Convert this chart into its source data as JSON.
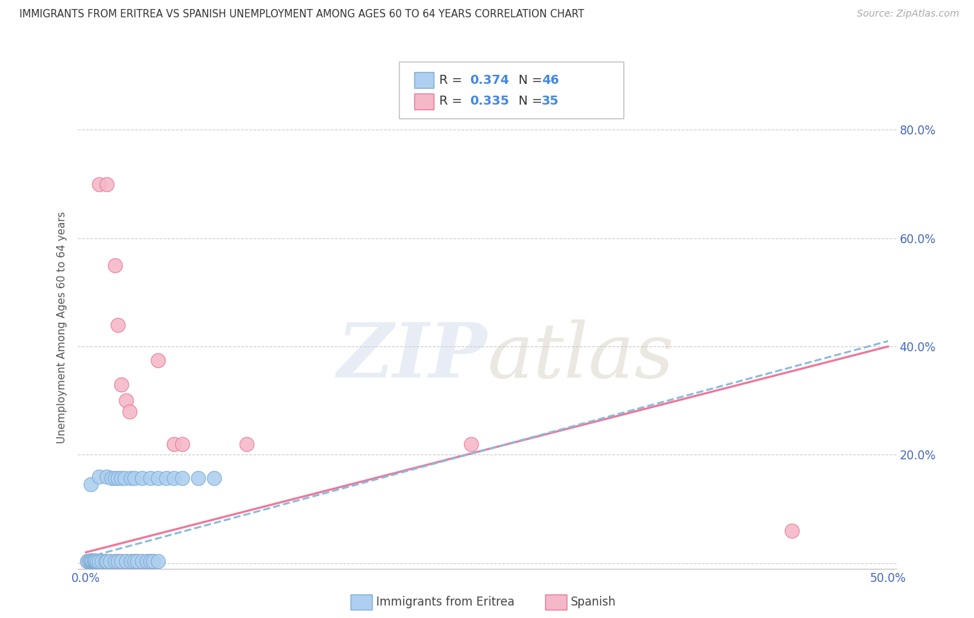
{
  "title": "IMMIGRANTS FROM ERITREA VS SPANISH UNEMPLOYMENT AMONG AGES 60 TO 64 YEARS CORRELATION CHART",
  "source": "Source: ZipAtlas.com",
  "ylabel": "Unemployment Among Ages 60 to 64 years",
  "xlim": [
    -0.005,
    0.505
  ],
  "ylim": [
    -0.01,
    0.88
  ],
  "xticks": [
    0.0,
    0.1,
    0.2,
    0.3,
    0.4,
    0.5
  ],
  "yticks": [
    0.0,
    0.2,
    0.4,
    0.6,
    0.8
  ],
  "ytick_labels_right": [
    "",
    "20.0%",
    "40.0%",
    "60.0%",
    "80.0%"
  ],
  "xtick_labels": [
    "0.0%",
    "",
    "",
    "",
    "",
    "50.0%"
  ],
  "legend_r1": "0.374",
  "legend_n1": "46",
  "legend_r2": "0.335",
  "legend_n2": "35",
  "blue_color": "#aecfef",
  "pink_color": "#f5b8c8",
  "blue_edge_color": "#7aadd4",
  "pink_edge_color": "#e87898",
  "blue_line_color": "#88bbdd",
  "pink_line_color": "#ee7799",
  "blue_scatter": [
    [
      0.001,
      0.003
    ],
    [
      0.002,
      0.003
    ],
    [
      0.003,
      0.003
    ],
    [
      0.003,
      0.005
    ],
    [
      0.004,
      0.003
    ],
    [
      0.004,
      0.005
    ],
    [
      0.005,
      0.003
    ],
    [
      0.005,
      0.005
    ],
    [
      0.006,
      0.003
    ],
    [
      0.006,
      0.005
    ],
    [
      0.007,
      0.003
    ],
    [
      0.008,
      0.003
    ],
    [
      0.01,
      0.003
    ],
    [
      0.012,
      0.003
    ],
    [
      0.013,
      0.003
    ],
    [
      0.015,
      0.003
    ],
    [
      0.018,
      0.003
    ],
    [
      0.02,
      0.003
    ],
    [
      0.022,
      0.003
    ],
    [
      0.025,
      0.003
    ],
    [
      0.028,
      0.003
    ],
    [
      0.03,
      0.003
    ],
    [
      0.032,
      0.003
    ],
    [
      0.035,
      0.003
    ],
    [
      0.038,
      0.003
    ],
    [
      0.04,
      0.003
    ],
    [
      0.042,
      0.003
    ],
    [
      0.045,
      0.003
    ],
    [
      0.003,
      0.145
    ],
    [
      0.008,
      0.16
    ],
    [
      0.013,
      0.16
    ],
    [
      0.016,
      0.157
    ],
    [
      0.018,
      0.157
    ],
    [
      0.02,
      0.157
    ],
    [
      0.022,
      0.157
    ],
    [
      0.024,
      0.157
    ],
    [
      0.028,
      0.157
    ],
    [
      0.03,
      0.157
    ],
    [
      0.035,
      0.157
    ],
    [
      0.04,
      0.157
    ],
    [
      0.045,
      0.157
    ],
    [
      0.05,
      0.157
    ],
    [
      0.055,
      0.157
    ],
    [
      0.06,
      0.157
    ],
    [
      0.07,
      0.157
    ],
    [
      0.08,
      0.157
    ]
  ],
  "pink_scatter": [
    [
      0.001,
      0.003
    ],
    [
      0.002,
      0.003
    ],
    [
      0.003,
      0.003
    ],
    [
      0.004,
      0.003
    ],
    [
      0.005,
      0.003
    ],
    [
      0.006,
      0.003
    ],
    [
      0.007,
      0.003
    ],
    [
      0.008,
      0.003
    ],
    [
      0.01,
      0.003
    ],
    [
      0.012,
      0.003
    ],
    [
      0.015,
      0.003
    ],
    [
      0.018,
      0.003
    ],
    [
      0.02,
      0.003
    ],
    [
      0.022,
      0.003
    ],
    [
      0.025,
      0.003
    ],
    [
      0.028,
      0.003
    ],
    [
      0.03,
      0.003
    ],
    [
      0.032,
      0.003
    ],
    [
      0.035,
      0.003
    ],
    [
      0.038,
      0.003
    ],
    [
      0.04,
      0.003
    ],
    [
      0.042,
      0.003
    ],
    [
      0.008,
      0.7
    ],
    [
      0.013,
      0.7
    ],
    [
      0.018,
      0.55
    ],
    [
      0.02,
      0.44
    ],
    [
      0.022,
      0.33
    ],
    [
      0.025,
      0.3
    ],
    [
      0.027,
      0.28
    ],
    [
      0.045,
      0.375
    ],
    [
      0.055,
      0.22
    ],
    [
      0.06,
      0.22
    ],
    [
      0.1,
      0.22
    ],
    [
      0.24,
      0.22
    ],
    [
      0.44,
      0.06
    ]
  ],
  "blue_trend_x": [
    0.0,
    0.5
  ],
  "blue_trend_y": [
    0.01,
    0.41
  ],
  "pink_trend_x": [
    0.0,
    0.5
  ],
  "pink_trend_y": [
    0.02,
    0.4
  ]
}
